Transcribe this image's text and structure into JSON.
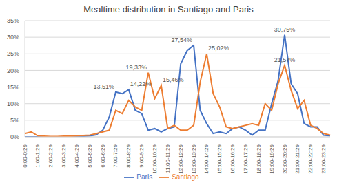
{
  "chart_data": {
    "type": "line",
    "title": "Mealtime distribution in Santiago and Paris",
    "categories": [
      "0:00-0:29",
      null,
      "1:00-1:29",
      null,
      "2:00-2:29",
      null,
      "3:00-3:29",
      null,
      "4:00-4:29",
      null,
      "5:00-5:29",
      null,
      "6:00-6:29",
      null,
      "7:00-7:29",
      null,
      "8:00-8:29",
      null,
      "9:00-9:29",
      null,
      "10:00-10:29",
      null,
      "11:00-11:29",
      null,
      "12:00-12:29",
      null,
      "13:00-13:29",
      null,
      "14:00-14:29",
      null,
      "15:00-15:29",
      null,
      "16:00-16:29",
      null,
      "17:00-17:29",
      null,
      "18:00-18:29",
      null,
      "19:00-19:29",
      null,
      "20:00-20:29",
      null,
      "21:00-21:29",
      null,
      "22:00-22:29",
      null,
      "23:00-23:29",
      null
    ],
    "series": [
      {
        "name": "Paris",
        "color": "#4472c4",
        "values": [
          0,
          0,
          0,
          0,
          0,
          0,
          0,
          0,
          0,
          0.2,
          0.3,
          0.6,
          2,
          6,
          13.51,
          13,
          14.22,
          8,
          7,
          2,
          2.5,
          1.5,
          2.5,
          3,
          22,
          26,
          27.54,
          8,
          4,
          1,
          1.5,
          1,
          2.5,
          3,
          2,
          0.5,
          2,
          2,
          10,
          17,
          30.75,
          16,
          13,
          4,
          3,
          3,
          0.5,
          0.3
        ],
        "value_labels": [
          null,
          null,
          null,
          null,
          null,
          null,
          null,
          null,
          null,
          null,
          null,
          null,
          null,
          null,
          "13,51%",
          null,
          "14,22%",
          null,
          null,
          null,
          null,
          null,
          null,
          null,
          null,
          null,
          "27,54%",
          null,
          null,
          null,
          null,
          null,
          null,
          null,
          null,
          null,
          null,
          null,
          null,
          null,
          "30,75%",
          null,
          null,
          null,
          null,
          null,
          null,
          null
        ]
      },
      {
        "name": "Santiago",
        "color": "#ed7d31",
        "values": [
          1,
          1.5,
          0.3,
          0.2,
          0.1,
          0.1,
          0.2,
          0.2,
          0.3,
          0.4,
          0.5,
          1,
          1.5,
          2,
          8,
          7,
          11,
          9,
          8,
          19.33,
          11.5,
          15.46,
          2.5,
          3.5,
          2,
          2,
          3.5,
          16.5,
          25.02,
          13,
          9,
          3,
          2.5,
          3,
          3.5,
          4,
          3.5,
          10,
          8,
          16,
          21.57,
          14,
          8.5,
          11,
          3.5,
          2.5,
          1,
          0.5
        ],
        "value_labels": [
          null,
          null,
          null,
          null,
          null,
          null,
          null,
          null,
          null,
          null,
          null,
          null,
          null,
          null,
          null,
          null,
          null,
          null,
          null,
          "19,33%",
          null,
          "15,46%",
          null,
          null,
          null,
          null,
          null,
          null,
          "25,02%",
          null,
          null,
          null,
          null,
          null,
          null,
          null,
          null,
          null,
          null,
          null,
          "21,57%",
          null,
          null,
          null,
          null,
          null,
          null,
          null
        ]
      }
    ],
    "ylim": [
      0,
      35
    ],
    "yticks": [
      {
        "value": 0,
        "label": "0%"
      },
      {
        "value": 5,
        "label": "5%"
      },
      {
        "value": 10,
        "label": "10%"
      },
      {
        "value": 15,
        "label": "15%"
      },
      {
        "value": 20,
        "label": "20%"
      },
      {
        "value": 25,
        "label": "25%"
      },
      {
        "value": 30,
        "label": "30%"
      },
      {
        "value": 35,
        "label": "35%"
      }
    ],
    "grid": true,
    "data_labels": true,
    "legend": "bottom"
  }
}
